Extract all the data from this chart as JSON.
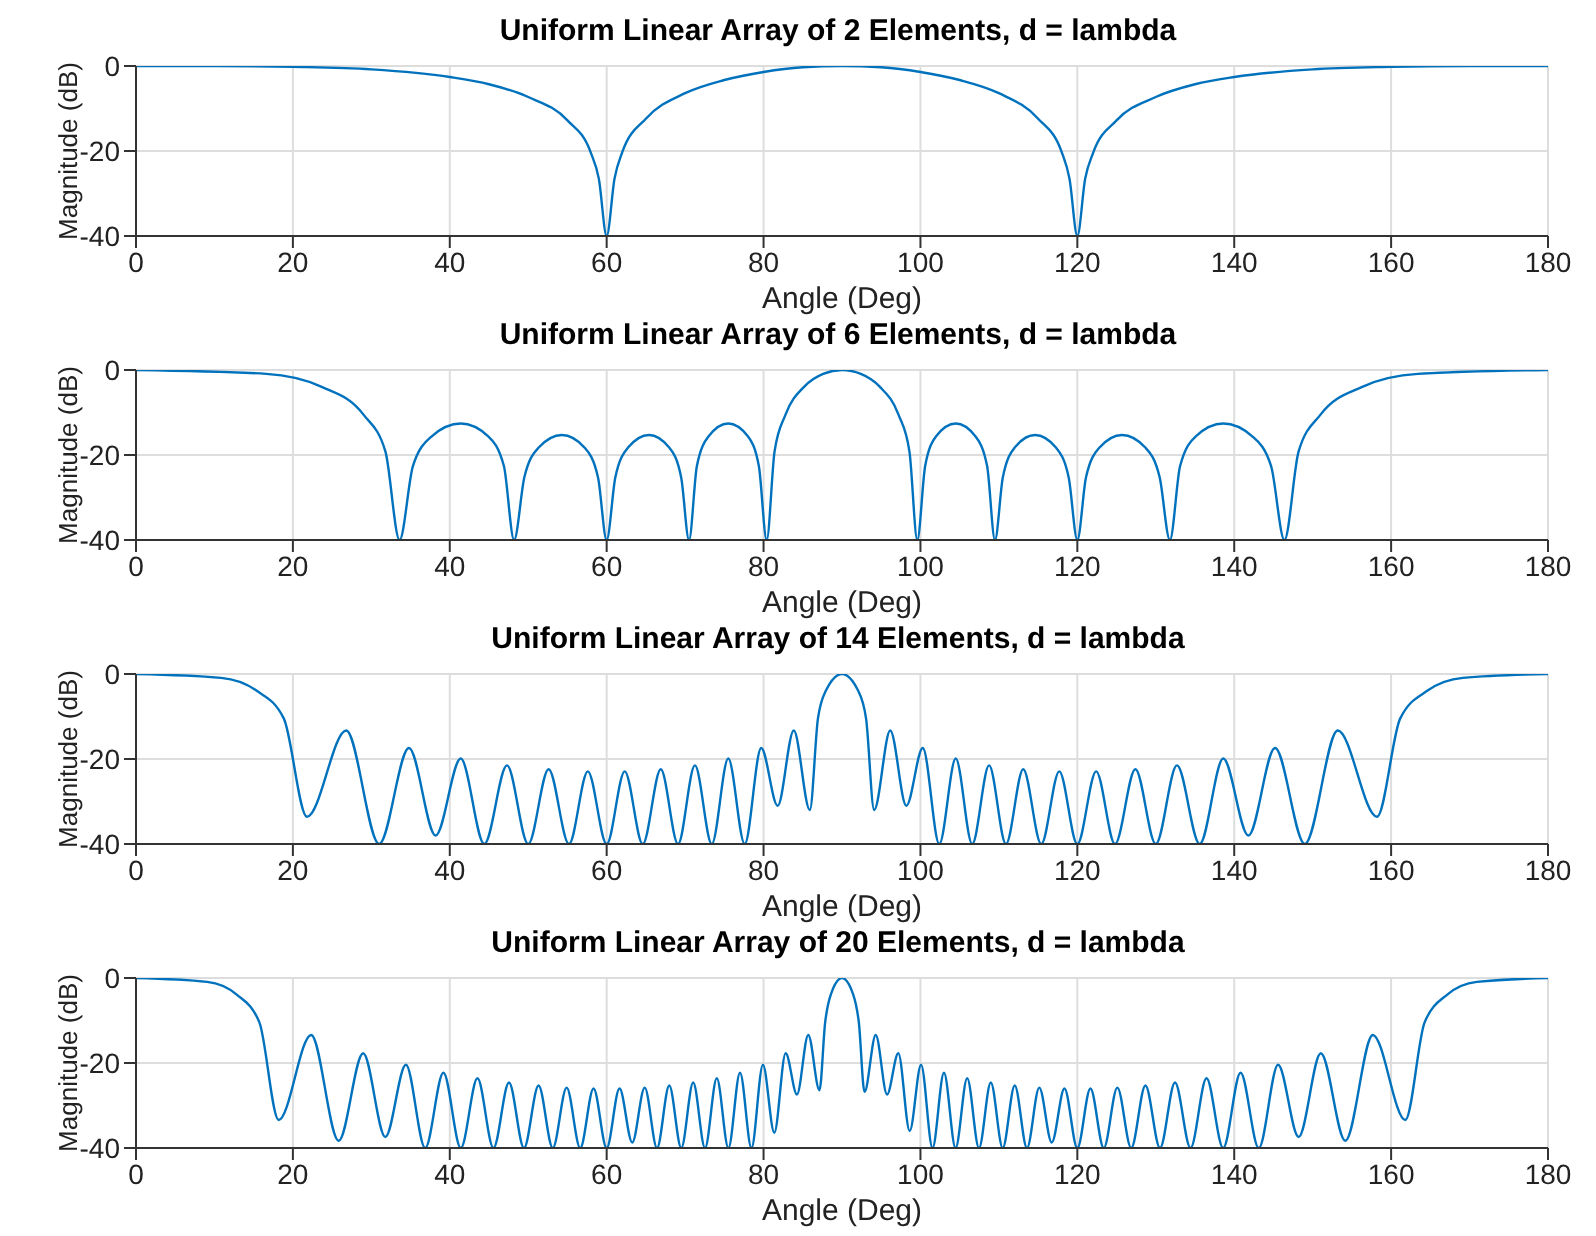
{
  "chart_data": [
    {
      "type": "line",
      "title": "Uniform Linear Array of 2 Elements, d = lambda",
      "xlabel": "Angle (Deg)",
      "ylabel": "Magnitude (dB)",
      "xlim": [
        0,
        180
      ],
      "xticks": [
        0,
        20,
        40,
        60,
        80,
        100,
        120,
        140,
        160,
        180
      ],
      "ylim": [
        -40,
        0
      ],
      "yticks": [
        -40,
        -20,
        0
      ],
      "grid": true,
      "color": "#0072bd",
      "x": [
        0,
        10,
        20,
        30,
        40,
        45,
        50,
        55,
        58,
        59,
        60,
        61,
        62,
        65,
        70,
        75,
        80,
        85,
        90,
        95,
        100,
        105,
        110,
        115,
        118,
        119,
        120,
        121,
        122,
        125,
        130,
        135,
        140,
        150,
        160,
        170,
        180
      ],
      "values": [
        0,
        0,
        -0.2,
        -0.8,
        -2.6,
        -4.3,
        -7.3,
        -12.8,
        -20.5,
        -26.5,
        -40,
        -26.5,
        -20.2,
        -12.4,
        -6.4,
        -3.3,
        -1.4,
        -0.3,
        0,
        -0.3,
        -1.4,
        -3.3,
        -6.4,
        -12.4,
        -20.2,
        -26.5,
        -40,
        -26.5,
        -20.5,
        -12.8,
        -7.3,
        -4.3,
        -2.6,
        -0.8,
        -0.2,
        0,
        0
      ]
    },
    {
      "type": "line",
      "title": "Uniform Linear Array of 6 Elements, d = lambda",
      "xlabel": "Angle (Deg)",
      "ylabel": "Magnitude (dB)",
      "xlim": [
        0,
        180
      ],
      "xticks": [
        0,
        20,
        40,
        60,
        80,
        100,
        120,
        140,
        160,
        180
      ],
      "ylim": [
        -40,
        0
      ],
      "yticks": [
        -40,
        -20,
        0
      ],
      "grid": true,
      "color": "#0072bd",
      "x": [
        0,
        16.6,
        23.6,
        29.0,
        31.8,
        33.6,
        35.3,
        37.7,
        41.4,
        44.9,
        46.9,
        48.2,
        49.5,
        51.3,
        54.3,
        57.2,
        58.9,
        60,
        61.1,
        62.7,
        65.4,
        68.0,
        69.5,
        70.5,
        71.5,
        73.0,
        75.5,
        78.0,
        79.4,
        80.4,
        81.4,
        82.8,
        85.2,
        87.6,
        90,
        92.4,
        94.8,
        97.2,
        98.6,
        99.6,
        100.6,
        102,
        104.5,
        107,
        108.5,
        109.5,
        110.5,
        112,
        114.6,
        117.3,
        118.9,
        120,
        121.1,
        122.8,
        125.7,
        128.7,
        130.5,
        131.8,
        133.1,
        135.1,
        138.6,
        142.3,
        144.7,
        146.4,
        148.2,
        151,
        156.4,
        163.4,
        180
      ],
      "values": [
        0,
        -0.9,
        -3.9,
        -10.5,
        -19.2,
        -40,
        -22.6,
        -15.6,
        -12.6,
        -15.6,
        -22.6,
        -40,
        -25.3,
        -18.3,
        -15.3,
        -18.3,
        -25.3,
        -40,
        -25.3,
        -18.3,
        -15.3,
        -18.3,
        -25.3,
        -40,
        -22.6,
        -15.6,
        -12.6,
        -15.6,
        -22.6,
        -40,
        -19.2,
        -10.5,
        -3.9,
        -0.9,
        0,
        -0.9,
        -3.9,
        -10.5,
        -19.2,
        -40,
        -22.6,
        -15.6,
        -12.6,
        -15.6,
        -22.6,
        -40,
        -25.3,
        -18.3,
        -15.3,
        -18.3,
        -25.3,
        -40,
        -25.3,
        -18.3,
        -15.3,
        -18.3,
        -25.3,
        -40,
        -22.6,
        -15.6,
        -12.6,
        -15.6,
        -22.6,
        -40,
        -19.2,
        -10.5,
        -3.9,
        -0.9,
        0
      ]
    },
    {
      "type": "line",
      "title": "Uniform Linear Array of 14 Elements, d = lambda",
      "xlabel": "Angle (Deg)",
      "ylabel": "Magnitude (dB)",
      "xlim": [
        0,
        180
      ],
      "xticks": [
        0,
        20,
        40,
        60,
        80,
        100,
        120,
        140,
        160,
        180
      ],
      "ylim": [
        -40,
        0
      ],
      "yticks": [
        -40,
        -20,
        0
      ],
      "grid": true,
      "color": "#0072bd",
      "x": [
        0,
        10.85,
        15.35,
        18.85,
        21.8,
        26.8,
        31.0,
        34.8,
        38.2,
        41.4,
        44.4,
        47.3,
        50.0,
        52.6,
        55.2,
        57.6,
        60,
        62.3,
        64.6,
        66.9,
        69.1,
        71.25,
        73.4,
        75.5,
        77.6,
        79.7,
        81.8,
        83.85,
        85.9,
        86.93,
        87.95,
        90,
        92.05,
        93.07,
        94.1,
        96.15,
        98.2,
        100.3,
        102.4,
        104.5,
        106.6,
        108.75,
        110.9,
        113.1,
        115.4,
        117.7,
        120,
        122.4,
        124.8,
        127.4,
        130,
        132.7,
        135.6,
        138.6,
        141.8,
        145.2,
        149,
        153.2,
        158.2,
        161.15,
        164.65,
        169.15,
        180
      ],
      "values": [
        0,
        -0.9,
        -3.9,
        -10.5,
        -33.6,
        -13.3,
        -40,
        -17.4,
        -38,
        -19.9,
        -40,
        -21.5,
        -40,
        -22.4,
        -40,
        -22.9,
        -40,
        -22.9,
        -40,
        -22.4,
        -40,
        -21.5,
        -40,
        -19.9,
        -40,
        -17.4,
        -31,
        -13.3,
        -32,
        -10.5,
        -3.9,
        0,
        -3.9,
        -10.5,
        -32,
        -13.3,
        -31,
        -17.4,
        -40,
        -19.9,
        -40,
        -21.5,
        -40,
        -22.4,
        -40,
        -22.9,
        -40,
        -22.9,
        -40,
        -22.4,
        -40,
        -21.5,
        -40,
        -19.9,
        -38,
        -17.4,
        -40,
        -13.3,
        -33.6,
        -10.5,
        -3.9,
        -0.9,
        0
      ]
    },
    {
      "type": "line",
      "title": "Uniform Linear Array of 20 Elements, d = lambda",
      "xlabel": "Angle (Deg)",
      "ylabel": "Magnitude (dB)",
      "xlim": [
        0,
        180
      ],
      "xticks": [
        0,
        20,
        40,
        60,
        80,
        100,
        120,
        140,
        160,
        180
      ],
      "ylim": [
        -40,
        0
      ],
      "yticks": [
        -40,
        -20,
        0
      ],
      "grid": true,
      "color": "#0072bd",
      "x": [
        0,
        9.07,
        12.84,
        15.74,
        18.19,
        22.33,
        25.84,
        28.96,
        31.79,
        34.41,
        36.87,
        39.19,
        41.41,
        43.53,
        45.57,
        47.55,
        49.46,
        51.32,
        53.13,
        54.9,
        56.63,
        58.33,
        60,
        61.64,
        63.26,
        64.85,
        66.42,
        67.98,
        69.51,
        71.03,
        72.54,
        74.04,
        75.52,
        77.0,
        78.46,
        79.92,
        81.37,
        82.82,
        84.26,
        85.7,
        87.13,
        87.85,
        88.57,
        90,
        91.43,
        92.15,
        92.87,
        94.3,
        95.74,
        97.18,
        98.63,
        100.08,
        101.54,
        103,
        104.48,
        105.96,
        107.46,
        108.97,
        110.49,
        112.02,
        113.58,
        115.15,
        116.74,
        118.36,
        120,
        121.67,
        123.37,
        125.1,
        126.87,
        128.68,
        130.54,
        132.45,
        134.43,
        136.47,
        138.59,
        140.81,
        143.13,
        145.59,
        148.21,
        151.04,
        154.16,
        157.67,
        161.81,
        164.26,
        167.16,
        170.93,
        180
      ],
      "values": [
        0,
        -0.9,
        -3.9,
        -10.5,
        -33.4,
        -13.4,
        -38.3,
        -17.7,
        -37.4,
        -20.4,
        -40,
        -22.3,
        -40,
        -23.6,
        -40,
        -24.6,
        -40,
        -25.3,
        -40,
        -25.8,
        -40,
        -26,
        -40,
        -26,
        -38.7,
        -25.8,
        -40,
        -25.3,
        -40,
        -24.6,
        -40,
        -23.6,
        -40,
        -22.3,
        -40,
        -20.4,
        -36.4,
        -17.7,
        -27.4,
        -13.4,
        -26.4,
        -10.5,
        -3.9,
        0,
        -3.9,
        -10.5,
        -26.8,
        -13.4,
        -27.4,
        -17.7,
        -36,
        -20.4,
        -40,
        -22.3,
        -40,
        -23.6,
        -40,
        -24.6,
        -40,
        -25.3,
        -40,
        -25.8,
        -38.7,
        -26,
        -40,
        -26,
        -40,
        -25.8,
        -40,
        -25.3,
        -40,
        -24.6,
        -40,
        -23.6,
        -40,
        -22.3,
        -40,
        -20.4,
        -37.4,
        -17.7,
        -38.3,
        -13.4,
        -33.4,
        -10.5,
        -3.9,
        -0.9,
        0
      ]
    }
  ]
}
